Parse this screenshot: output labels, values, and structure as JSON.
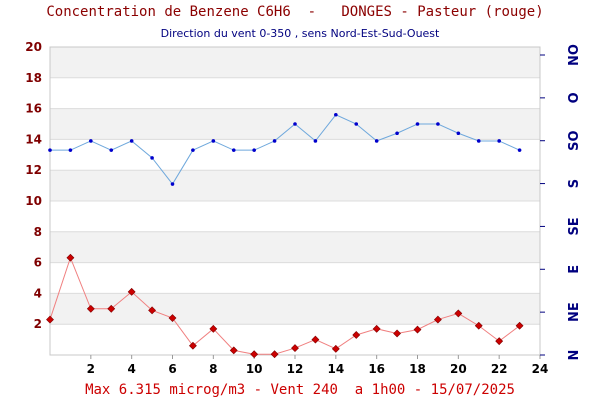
{
  "chart_data": {
    "type": "line",
    "title": "Concentration de Benzene C6H6  -   DONGES - Pasteur (rouge)",
    "subtitle": "Direction du vent 0-350 , sens Nord-Est-Sud-Ouest",
    "footer": "Max 6.315 microg/m3 - Vent 240  a 1h00 - 15/07/2025",
    "x": [
      0,
      1,
      2,
      3,
      4,
      5,
      6,
      7,
      8,
      9,
      10,
      11,
      12,
      13,
      14,
      15,
      16,
      17,
      18,
      19,
      20,
      21,
      22,
      23
    ],
    "xlim": [
      0,
      24
    ],
    "x_ticks": [
      "2",
      "4",
      "6",
      "8",
      "10",
      "12",
      "14",
      "16",
      "18",
      "20",
      "22",
      "24"
    ],
    "ylim": [
      0,
      20
    ],
    "y_ticks": [
      "2",
      "4",
      "6",
      "8",
      "10",
      "12",
      "14",
      "16",
      "18",
      "20"
    ],
    "right_axis_ticks": [
      "N",
      "NE",
      "E",
      "SE",
      "S",
      "SO",
      "O",
      "NO"
    ],
    "series": [
      {
        "color": "#cc0000",
        "line_color": "#f08080",
        "marker": "diamond",
        "values": [
          2.3,
          6.315,
          3.0,
          3.0,
          4.1,
          2.9,
          2.4,
          0.6,
          1.7,
          0.3,
          0.05,
          0.05,
          0.45,
          1.0,
          0.4,
          1.3,
          1.7,
          1.4,
          1.65,
          2.3,
          2.7,
          1.9,
          0.9,
          1.9
        ]
      },
      {
        "color": "#0000cc",
        "line_color": "#6fa8dc",
        "marker": "dot",
        "values": [
          13.3,
          13.3,
          13.9,
          13.3,
          13.9,
          12.8,
          11.1,
          13.3,
          13.9,
          13.3,
          13.3,
          13.9,
          15.0,
          13.9,
          15.6,
          15.0,
          13.9,
          14.4,
          15.0,
          15.0,
          14.4,
          13.9,
          13.9,
          13.3
        ]
      }
    ],
    "grid": true,
    "band_colors": [
      "#f2f2f2",
      "#ffffff"
    ]
  }
}
